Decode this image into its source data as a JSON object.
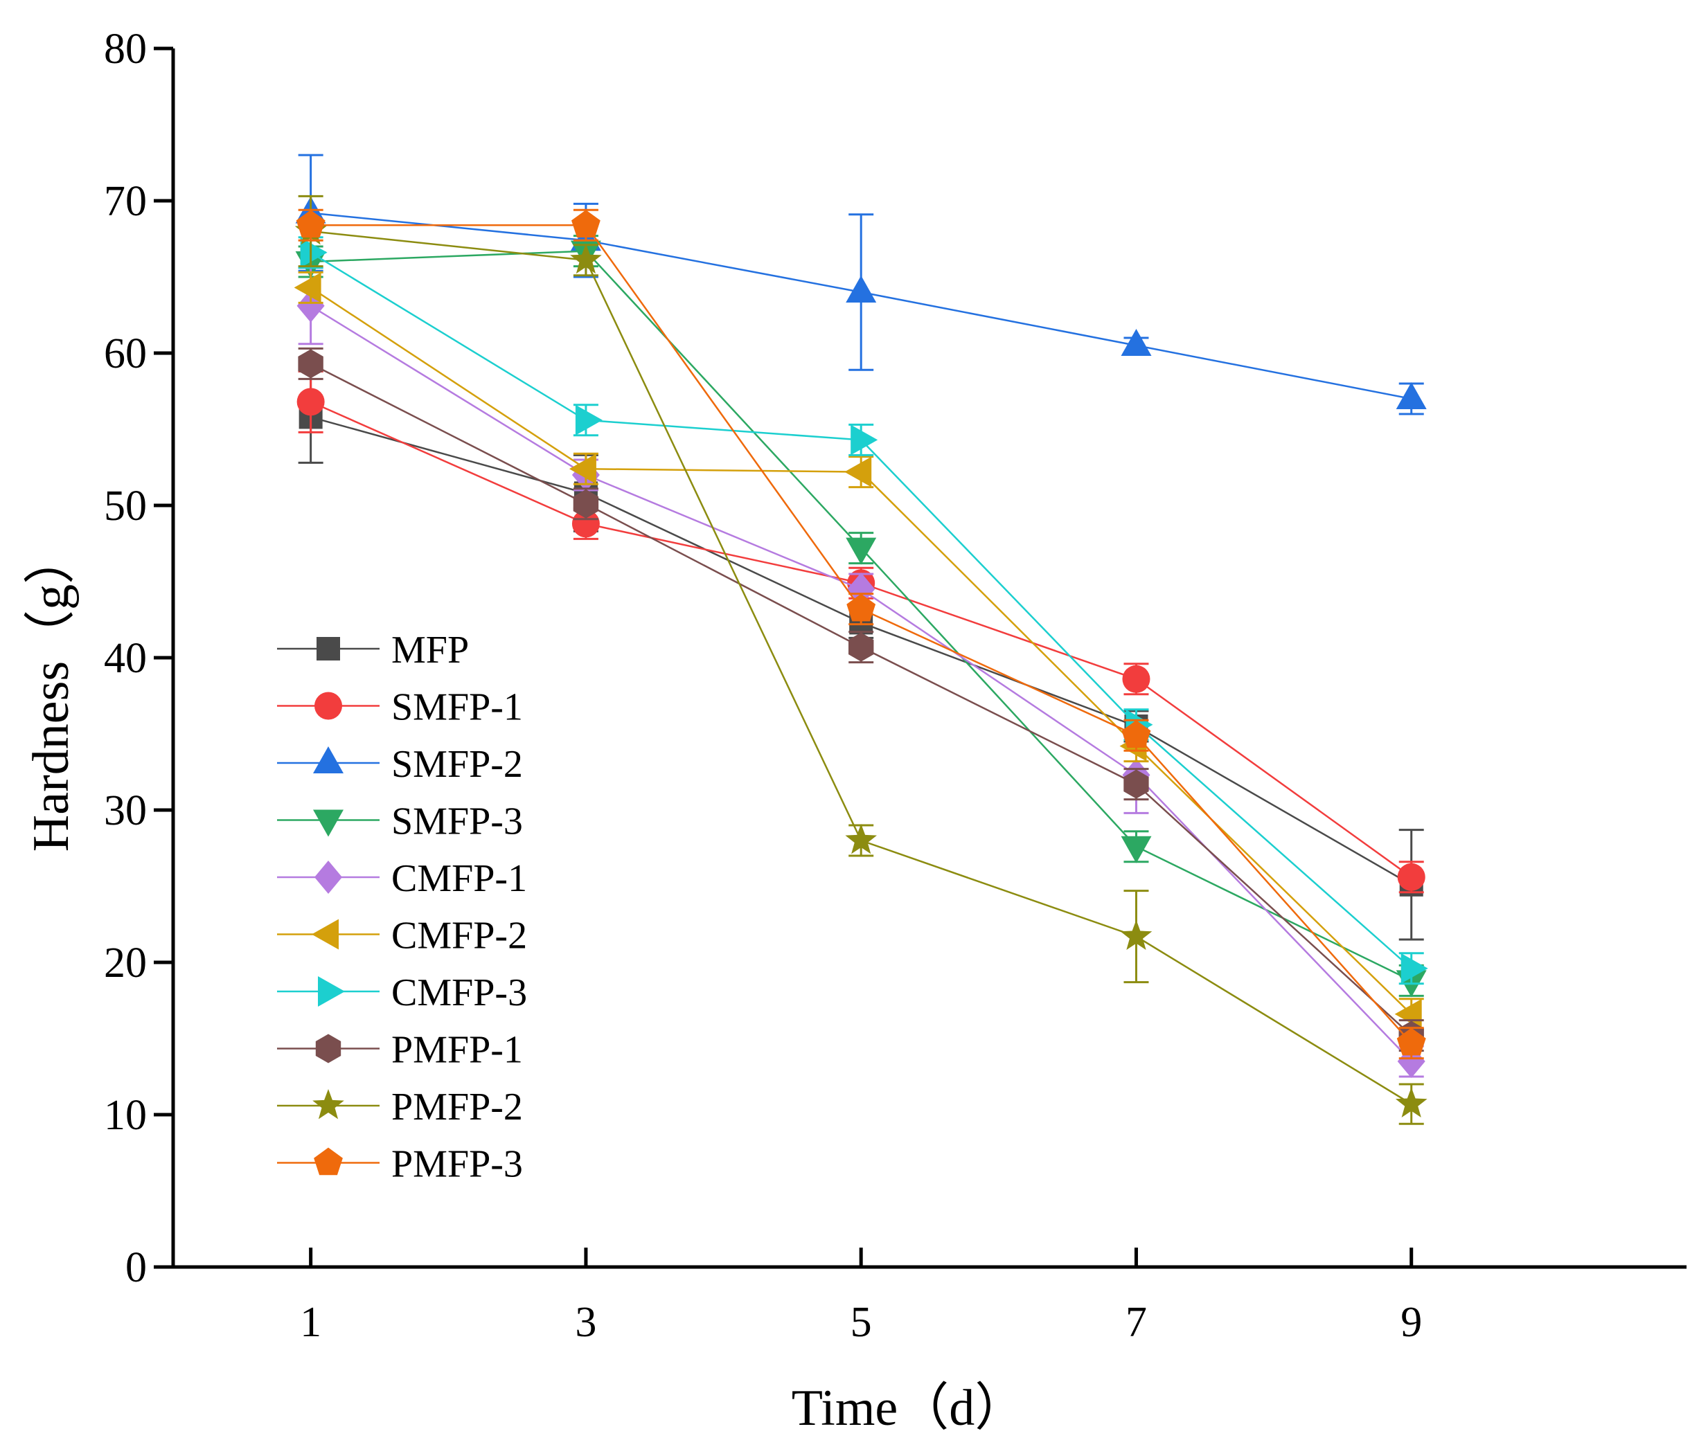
{
  "chart_data": {
    "type": "line",
    "title": "",
    "xlabel": "Time（d）",
    "ylabel": "Hardness（g）",
    "x": [
      1,
      3,
      5,
      7,
      9
    ],
    "xlim": [
      0,
      11
    ],
    "ylim": [
      0,
      80
    ],
    "xticks": [
      "1",
      "3",
      "5",
      "7",
      "9"
    ],
    "yticks": [
      "0",
      "10",
      "20",
      "30",
      "40",
      "50",
      "60",
      "70",
      "80"
    ],
    "grid": false,
    "legend_position": "bottom-left",
    "series": [
      {
        "name": "MFP",
        "color": "#4a4a4a",
        "marker": "square",
        "values": [
          55.8,
          50.8,
          42.3,
          35.5,
          25.1
        ],
        "errors": [
          3.0,
          2.5,
          1.0,
          1.0,
          3.6
        ]
      },
      {
        "name": "SMFP-1",
        "color": "#f23d3d",
        "marker": "circle",
        "values": [
          56.8,
          48.8,
          44.9,
          38.6,
          25.6
        ],
        "errors": [
          2.0,
          1.0,
          1.0,
          1.0,
          1.0
        ]
      },
      {
        "name": "SMFP-2",
        "color": "#2471e0",
        "marker": "triangle-up",
        "values": [
          69.2,
          67.4,
          64.0,
          60.5,
          57.0
        ],
        "errors": [
          3.8,
          2.4,
          5.1,
          0.5,
          1.0
        ]
      },
      {
        "name": "SMFP-3",
        "color": "#2ca862",
        "marker": "triangle-down",
        "values": [
          66.0,
          66.7,
          47.2,
          27.6,
          18.8
        ],
        "errors": [
          1.0,
          1.0,
          1.0,
          1.0,
          1.0
        ]
      },
      {
        "name": "CMFP-1",
        "color": "#b57be0",
        "marker": "diamond",
        "values": [
          63.1,
          52.0,
          44.5,
          32.3,
          13.5
        ],
        "errors": [
          2.5,
          1.0,
          1.0,
          2.5,
          1.0
        ]
      },
      {
        "name": "CMFP-2",
        "color": "#d4a00c",
        "marker": "triangle-left",
        "values": [
          64.3,
          52.4,
          52.2,
          34.2,
          16.6
        ],
        "errors": [
          1.0,
          1.0,
          1.0,
          1.0,
          1.0
        ]
      },
      {
        "name": "CMFP-3",
        "color": "#1ccfcf",
        "marker": "triangle-right",
        "values": [
          66.6,
          55.6,
          54.3,
          35.6,
          19.6
        ],
        "errors": [
          1.0,
          1.0,
          1.0,
          1.0,
          1.0
        ]
      },
      {
        "name": "PMFP-1",
        "color": "#7a4e4e",
        "marker": "hexagon",
        "values": [
          59.3,
          50.1,
          40.7,
          31.7,
          15.2
        ],
        "errors": [
          1.0,
          1.0,
          1.0,
          1.0,
          1.0
        ]
      },
      {
        "name": "PMFP-2",
        "color": "#8c8c10",
        "marker": "star",
        "values": [
          68.0,
          66.1,
          28.0,
          21.7,
          10.7
        ],
        "errors": [
          2.3,
          1.0,
          1.0,
          3.0,
          1.3
        ]
      },
      {
        "name": "PMFP-3",
        "color": "#ef6a0c",
        "marker": "pentagon",
        "values": [
          68.4,
          68.4,
          43.2,
          34.9,
          14.7
        ],
        "errors": [
          1.0,
          1.0,
          1.0,
          1.0,
          1.0
        ]
      }
    ]
  }
}
